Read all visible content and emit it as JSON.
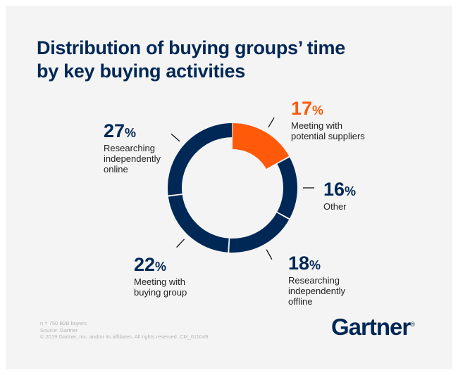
{
  "chart_data": {
    "type": "pie",
    "style": "donut",
    "title": "Distribution of buying groups’ time by key buying activities",
    "slices": [
      {
        "label": "Meeting with potential suppliers",
        "value": 17,
        "pct": "17",
        "color": "#ff5a0a"
      },
      {
        "label": "Other",
        "value": 16,
        "pct": "16",
        "color": "#002856"
      },
      {
        "label": "Researching independently offline",
        "value": 18,
        "pct": "18",
        "color": "#002856"
      },
      {
        "label": "Meeting with buying group",
        "value": 22,
        "pct": "22",
        "color": "#002856"
      },
      {
        "label": "Researching independently online",
        "value": 27,
        "pct": "27",
        "color": "#002856"
      }
    ],
    "percent_sign": "%"
  },
  "footer": {
    "sample": "n = 750 B2B buyers",
    "source": "Source: Gartner",
    "copyright": "© 2019 Gartner, Inc. and/or its affiliates. All rights reserved. CM_611049"
  },
  "logo": {
    "text": "Gartner",
    "mark": "®"
  }
}
